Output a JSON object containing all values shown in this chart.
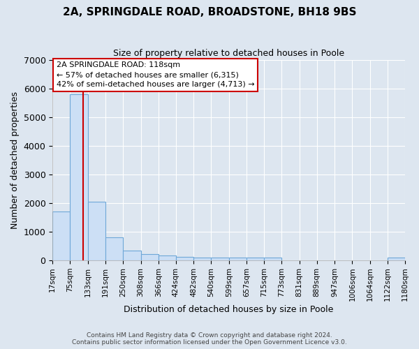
{
  "title": "2A, SPRINGDALE ROAD, BROADSTONE, BH18 9BS",
  "subtitle": "Size of property relative to detached houses in Poole",
  "xlabel": "Distribution of detached houses by size in Poole",
  "ylabel": "Number of detached properties",
  "footer_line1": "Contains HM Land Registry data © Crown copyright and database right 2024.",
  "footer_line2": "Contains public sector information licensed under the Open Government Licence v3.0.",
  "bin_edges": [
    17,
    75,
    133,
    191,
    250,
    308,
    366,
    424,
    482,
    540,
    599,
    657,
    715,
    773,
    831,
    889,
    947,
    1006,
    1064,
    1122,
    1180
  ],
  "bar_heights": [
    1700,
    5800,
    2050,
    800,
    350,
    210,
    160,
    110,
    105,
    100,
    100,
    100,
    100,
    0,
    0,
    0,
    0,
    0,
    0,
    100
  ],
  "bar_color": "#ccdff5",
  "bar_edge_color": "#6fa8d8",
  "red_line_x": 118,
  "annotation_title": "2A SPRINGDALE ROAD: 118sqm",
  "annotation_line2": "← 57% of detached houses are smaller (6,315)",
  "annotation_line3": "42% of semi-detached houses are larger (4,713) →",
  "annotation_box_color": "#ffffff",
  "annotation_box_edge": "#cc0000",
  "red_line_color": "#cc0000",
  "ylim": [
    0,
    7000
  ],
  "yticks": [
    0,
    1000,
    2000,
    3000,
    4000,
    5000,
    6000,
    7000
  ],
  "bg_color": "#dde6f0",
  "plot_bg_color": "#dde6f0",
  "grid_color": "#ffffff",
  "title_fontsize": 11,
  "subtitle_fontsize": 9
}
